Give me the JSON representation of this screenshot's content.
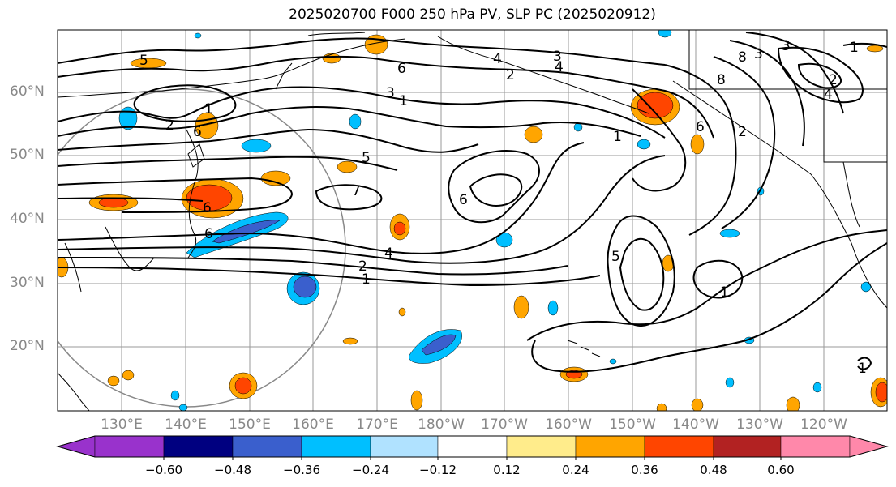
{
  "title": "2025020700 F000 250 hPa PV, SLP PC (2025020912)",
  "lat_labels": [
    "60°N",
    "50°N",
    "40°N",
    "30°N",
    "20°N"
  ],
  "lon_labels": [
    "130°E",
    "140°E",
    "150°E",
    "160°E",
    "170°E",
    "180°W",
    "170°W",
    "160°W",
    "150°W",
    "140°W",
    "130°W",
    "120°W"
  ],
  "colorbar": {
    "ticks": [
      "−0.60",
      "−0.48",
      "−0.36",
      "−0.24",
      "−0.12",
      "0.12",
      "0.24",
      "0.36",
      "0.48",
      "0.60"
    ],
    "colors": [
      "#9932cc",
      "#000080",
      "#3a5fcd",
      "#00bfff",
      "#b0e2ff",
      "#ffffff",
      "#ffec8b",
      "#ffa500",
      "#ff4500",
      "#b22222",
      "#ff88aa"
    ]
  },
  "contour_labels": [
    "5",
    "6",
    "4",
    "2",
    "1",
    "3",
    "4",
    "3",
    "1",
    "7",
    "6",
    "4",
    "2",
    "1",
    "6",
    "2",
    "5",
    "1",
    "6",
    "6",
    "5",
    "1",
    "3",
    "2",
    "4",
    "8",
    "3",
    "1",
    "8",
    "2",
    "1",
    "6"
  ]
}
